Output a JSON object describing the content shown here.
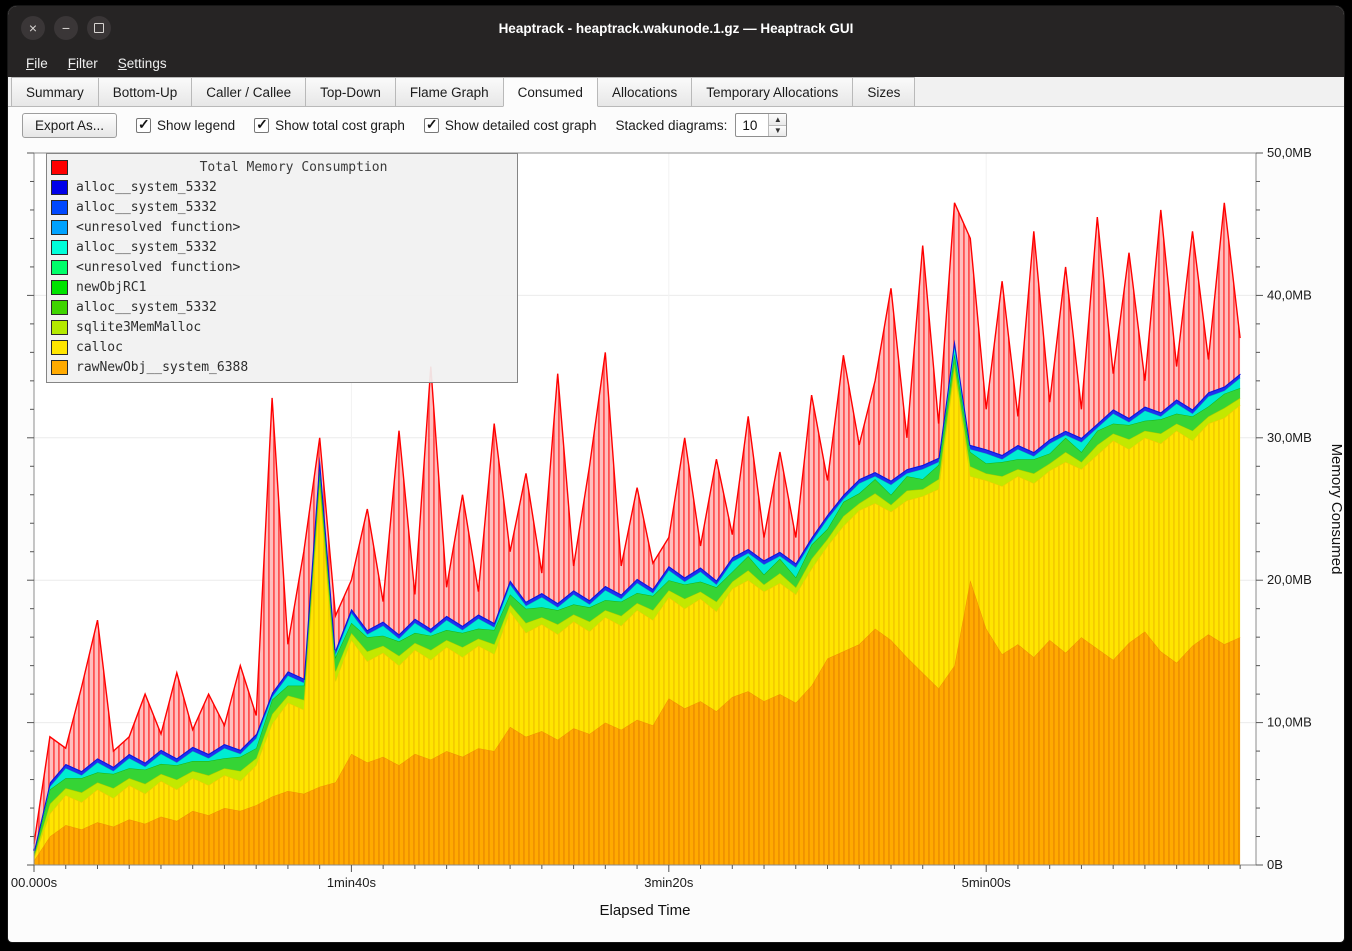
{
  "window": {
    "title": "Heaptrack - heaptrack.wakunode.1.gz — Heaptrack GUI",
    "controls": [
      "close",
      "minimize",
      "maximize"
    ]
  },
  "menu": {
    "items": [
      "File",
      "Filter",
      "Settings"
    ]
  },
  "tabs": {
    "items": [
      "Summary",
      "Bottom-Up",
      "Caller / Callee",
      "Top-Down",
      "Flame Graph",
      "Consumed",
      "Allocations",
      "Temporary Allocations",
      "Sizes"
    ],
    "active": "Consumed"
  },
  "toolbar": {
    "export_label": "Export As...",
    "checkboxes": [
      {
        "label": "Show legend",
        "checked": true
      },
      {
        "label": "Show total cost graph",
        "checked": true
      },
      {
        "label": "Show detailed cost graph",
        "checked": true
      }
    ],
    "stacked_label": "Stacked diagrams:",
    "stacked_value": "10"
  },
  "legend": {
    "title": "Total Memory Consumption",
    "title_color": "#ff0000",
    "items": [
      {
        "label": "alloc__system_5332",
        "color": "#0000e8"
      },
      {
        "label": "alloc__system_5332",
        "color": "#0048ff"
      },
      {
        "label": "<unresolved function>",
        "color": "#00a2ff"
      },
      {
        "label": "alloc__system_5332",
        "color": "#00ffd9"
      },
      {
        "label": "<unresolved function>",
        "color": "#00ff6a"
      },
      {
        "label": "newObjRC1",
        "color": "#00e400"
      },
      {
        "label": "alloc__system_5332",
        "color": "#3fd400"
      },
      {
        "label": "sqlite3MemMalloc",
        "color": "#b4e900"
      },
      {
        "label": "calloc",
        "color": "#ffe500"
      },
      {
        "label": "rawNewObj__system_6388",
        "color": "#ffaa00"
      }
    ]
  },
  "axes": {
    "x_label": "Elapsed Time",
    "y_label": "Memory Consumed",
    "x_ticks": [
      {
        "label": "00.000s",
        "t": 0
      },
      {
        "label": "1min40s",
        "t": 100
      },
      {
        "label": "3min20s",
        "t": 200
      },
      {
        "label": "5min00s",
        "t": 300
      }
    ],
    "y_ticks": [
      {
        "label": "0B",
        "v": 0
      },
      {
        "label": "10,0MB",
        "v": 10
      },
      {
        "label": "20,0MB",
        "v": 20
      },
      {
        "label": "30,0MB",
        "v": 30
      },
      {
        "label": "40,0MB",
        "v": 40
      },
      {
        "label": "50,0MB",
        "v": 50
      }
    ]
  },
  "chart_data": {
    "type": "area",
    "stacked": true,
    "unit": "MB",
    "x_unit": "s",
    "xlim": [
      0,
      385
    ],
    "ylim": [
      0,
      50
    ],
    "x_seconds": [
      0,
      5,
      10,
      15,
      20,
      25,
      30,
      35,
      40,
      45,
      50,
      55,
      60,
      65,
      70,
      75,
      80,
      85,
      90,
      95,
      100,
      105,
      110,
      115,
      120,
      125,
      130,
      135,
      140,
      145,
      150,
      155,
      160,
      165,
      170,
      175,
      180,
      185,
      190,
      195,
      200,
      205,
      210,
      215,
      220,
      225,
      230,
      235,
      240,
      245,
      250,
      255,
      260,
      265,
      270,
      275,
      280,
      285,
      290,
      295,
      300,
      305,
      310,
      315,
      320,
      325,
      330,
      335,
      340,
      345,
      350,
      355,
      360,
      365,
      370,
      375,
      380
    ],
    "series": [
      {
        "name": "rawNewObj__system_6388",
        "color": "#ffaa00",
        "stripe": "#f09200",
        "edge": "#f09200",
        "edge_width": 1,
        "top": [
          0.3,
          2.0,
          2.8,
          2.5,
          3.0,
          2.7,
          3.2,
          2.9,
          3.4,
          3.1,
          3.8,
          3.5,
          4.0,
          3.8,
          4.2,
          4.8,
          5.2,
          5.0,
          5.5,
          5.8,
          7.8,
          7.2,
          7.6,
          7.0,
          7.8,
          7.4,
          8.0,
          7.6,
          8.2,
          8.0,
          9.7,
          9.0,
          9.4,
          8.8,
          9.6,
          9.2,
          10.0,
          9.5,
          10.2,
          9.8,
          11.7,
          11.0,
          11.5,
          10.8,
          11.8,
          12.2,
          11.5,
          12.0,
          11.4,
          12.6,
          14.5,
          15.0,
          15.5,
          16.6,
          15.8,
          14.6,
          13.5,
          12.4,
          14.0,
          20.0,
          16.6,
          14.8,
          15.5,
          14.6,
          15.8,
          14.9,
          16.0,
          15.2,
          14.4,
          15.6,
          16.4,
          15.0,
          14.2,
          15.4,
          16.2,
          15.5,
          16.0
        ]
      },
      {
        "name": "calloc",
        "color": "#ffe500",
        "stripe": "#f3cc00",
        "edge": "#f3cc00",
        "edge_width": 1,
        "top": [
          0.5,
          3.6,
          4.9,
          4.4,
          5.3,
          4.7,
          5.6,
          5.0,
          5.9,
          5.3,
          6.1,
          5.6,
          6.3,
          5.9,
          7.0,
          9.9,
          11.4,
          10.9,
          26.5,
          12.9,
          15.8,
          14.3,
          14.9,
          14.0,
          15.1,
          14.4,
          15.3,
          14.6,
          15.4,
          14.8,
          17.8,
          16.3,
          16.9,
          16.2,
          17.1,
          16.4,
          17.4,
          16.8,
          17.9,
          17.2,
          18.8,
          18.0,
          18.7,
          17.8,
          19.4,
          20.0,
          19.2,
          19.8,
          19.0,
          20.8,
          22.4,
          23.8,
          24.9,
          25.4,
          24.8,
          25.6,
          25.9,
          26.4,
          34.7,
          27.3,
          27.0,
          26.6,
          27.3,
          26.8,
          27.7,
          28.3,
          27.8,
          28.8,
          29.8,
          29.2,
          30.0,
          29.6,
          30.5,
          29.8,
          31.0,
          31.4,
          32.3
        ]
      },
      {
        "name": "sqlite3MemMalloc",
        "color": "#c3e800",
        "edge": "#a6c900",
        "edge_width": 1,
        "top": [
          0.6,
          4.3,
          5.4,
          5.1,
          5.8,
          5.4,
          6.1,
          5.7,
          6.4,
          6.0,
          6.6,
          6.3,
          6.8,
          6.6,
          7.5,
          10.6,
          11.9,
          11.6,
          27.0,
          13.6,
          16.3,
          15.0,
          15.4,
          14.7,
          15.6,
          15.1,
          15.8,
          15.3,
          15.9,
          15.5,
          18.3,
          17.0,
          17.4,
          16.9,
          17.6,
          17.1,
          17.9,
          17.5,
          18.4,
          17.9,
          19.3,
          18.7,
          19.2,
          18.5,
          19.9,
          20.7,
          19.7,
          20.5,
          19.5,
          21.5,
          22.9,
          24.5,
          25.4,
          26.1,
          25.3,
          26.3,
          26.4,
          27.1,
          35.2,
          28.0,
          27.5,
          27.3,
          27.8,
          27.5,
          28.2,
          29.0,
          28.3,
          29.5,
          30.3,
          29.9,
          30.5,
          30.3,
          31.0,
          30.5,
          31.5,
          32.1,
          32.8
        ]
      },
      {
        "name": "newObjRC1",
        "color": "#35d435",
        "edge": "#17b017",
        "edge_width": 1,
        "top": [
          0.8,
          5.3,
          6.1,
          6.1,
          6.5,
          6.4,
          6.8,
          6.7,
          7.1,
          7.0,
          7.3,
          7.3,
          7.5,
          7.6,
          8.2,
          11.6,
          12.6,
          12.6,
          27.7,
          14.6,
          17.0,
          16.0,
          16.1,
          15.7,
          16.3,
          16.1,
          16.5,
          16.3,
          16.6,
          16.5,
          19.0,
          18.0,
          18.1,
          17.9,
          18.3,
          18.1,
          18.6,
          18.5,
          19.1,
          18.9,
          20.0,
          19.7,
          19.9,
          19.5,
          20.6,
          21.7,
          20.4,
          21.5,
          20.2,
          22.5,
          23.6,
          25.5,
          26.1,
          27.1,
          26.0,
          27.3,
          27.1,
          28.1,
          35.9,
          29.0,
          28.2,
          28.3,
          28.5,
          28.5,
          28.9,
          30.0,
          29.0,
          30.5,
          31.0,
          30.9,
          31.2,
          31.3,
          31.7,
          31.5,
          32.2,
          33.1,
          33.5
        ]
      },
      {
        "name": "alloc__system_5332",
        "color": "#00ecd2",
        "edge": "#00cdb6",
        "edge_width": 1,
        "top": [
          0.9,
          5.5,
          6.8,
          6.3,
          7.2,
          6.6,
          7.5,
          6.9,
          7.8,
          7.2,
          8.0,
          7.5,
          8.2,
          7.8,
          8.9,
          11.8,
          13.3,
          12.8,
          28.4,
          14.8,
          17.7,
          16.2,
          16.8,
          15.9,
          17.0,
          16.3,
          17.2,
          16.5,
          17.3,
          16.7,
          19.7,
          18.2,
          18.8,
          18.1,
          19.0,
          18.3,
          19.3,
          18.7,
          19.8,
          19.1,
          20.7,
          19.9,
          20.6,
          19.7,
          21.3,
          21.9,
          21.1,
          21.7,
          20.9,
          22.7,
          24.3,
          25.7,
          26.8,
          27.3,
          26.7,
          27.5,
          27.8,
          28.3,
          36.6,
          29.2,
          28.9,
          28.5,
          29.2,
          28.7,
          29.6,
          30.2,
          29.7,
          30.7,
          31.7,
          31.1,
          31.9,
          31.5,
          32.4,
          31.7,
          32.9,
          33.3,
          34.2
        ]
      },
      {
        "name": "alloc__system_5332",
        "color": "#2030f0",
        "edge": "#0a16dd",
        "edge_width": 2.2,
        "top": [
          1.0,
          5.8,
          7.1,
          6.6,
          7.5,
          6.9,
          7.8,
          7.2,
          8.1,
          7.5,
          8.3,
          7.8,
          8.5,
          8.1,
          9.2,
          12.1,
          13.6,
          13.1,
          28.7,
          15.1,
          18.0,
          16.5,
          17.1,
          16.2,
          17.3,
          16.6,
          17.5,
          16.8,
          17.6,
          17.0,
          20.0,
          18.5,
          19.1,
          18.4,
          19.3,
          18.6,
          19.6,
          19.0,
          20.1,
          19.4,
          21.0,
          20.2,
          20.9,
          20.0,
          21.6,
          22.2,
          21.4,
          22.0,
          21.2,
          23.0,
          24.6,
          26.0,
          27.1,
          27.6,
          27.0,
          27.8,
          28.1,
          28.6,
          36.9,
          29.5,
          29.2,
          28.8,
          29.5,
          29.0,
          29.9,
          30.5,
          30.0,
          31.0,
          32.0,
          31.4,
          32.2,
          31.8,
          32.7,
          32.0,
          33.2,
          33.6,
          34.5
        ]
      }
    ],
    "total": {
      "name": "Total Memory Consumption",
      "color": "#ff0000",
      "fill": "#ffbdbd",
      "stripe": "#ff5252",
      "values": [
        1.5,
        9.0,
        8.2,
        12.5,
        17.2,
        8.0,
        9.0,
        12.0,
        9.2,
        13.5,
        9.5,
        12.0,
        9.8,
        14.0,
        10.5,
        32.8,
        15.5,
        22.0,
        30.0,
        17.5,
        20.0,
        25.0,
        18.5,
        30.5,
        19.0,
        35.0,
        19.5,
        26.0,
        19.2,
        31.0,
        22.0,
        27.5,
        20.5,
        34.5,
        21.0,
        28.0,
        36.0,
        21.0,
        26.5,
        21.2,
        23.0,
        30.0,
        22.4,
        28.5,
        23.2,
        31.5,
        23.0,
        29.0,
        23.0,
        33.0,
        27.0,
        35.8,
        29.5,
        34.0,
        40.5,
        30.0,
        43.5,
        31.0,
        46.5,
        44.0,
        32.0,
        41.0,
        31.5,
        44.5,
        32.5,
        42.0,
        32.0,
        45.5,
        34.5,
        43.0,
        34.0,
        46.0,
        35.0,
        44.5,
        35.5,
        46.5,
        37.0
      ]
    }
  }
}
